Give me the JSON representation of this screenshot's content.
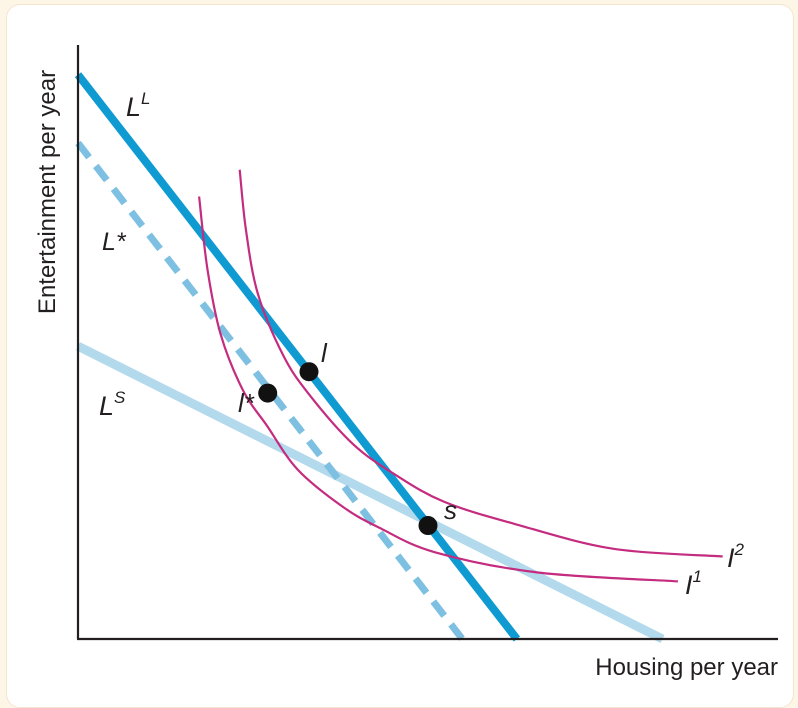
{
  "chart_data": {
    "type": "line",
    "title": "",
    "xlabel": "Housing per year",
    "ylabel": "Entertainment per year",
    "xlim": [
      0,
      100
    ],
    "ylim": [
      0,
      100
    ],
    "grid": false,
    "colors": {
      "LL": "#0f9bd2",
      "Lstar": "#7ec0e2",
      "LS": "#b3d9ec",
      "indifference": "#c42c7f",
      "point": "#111111",
      "axis": "#231f20"
    },
    "budget_lines": [
      {
        "id": "LL",
        "main": "L",
        "sup": "L",
        "style": "solid-thick",
        "x": [
          0,
          62.7
        ],
        "y": [
          95,
          0
        ]
      },
      {
        "id": "Lstar",
        "main": "L*",
        "sup": "",
        "style": "dashed",
        "x": [
          0,
          54.9
        ],
        "y": [
          83.5,
          0
        ]
      },
      {
        "id": "LS",
        "main": "L",
        "sup": "S",
        "style": "solid-pale",
        "x": [
          0,
          83.5
        ],
        "y": [
          49.3,
          0
        ]
      }
    ],
    "indifference_curves": [
      {
        "id": "I1",
        "main": "I",
        "sup": "1",
        "x": [
          17.3,
          18.5,
          20.4,
          23.6,
          27.0,
          31.4,
          37.9,
          43.1,
          51.0,
          65.7,
          85.7
        ],
        "y": [
          74.5,
          62.2,
          51.2,
          41.8,
          35.9,
          28.5,
          22.2,
          18.7,
          14.6,
          11.2,
          9.7
        ]
      },
      {
        "id": "I2",
        "main": "I",
        "sup": "2",
        "x": [
          23.1,
          24.0,
          25.7,
          29.3,
          33.0,
          39.3,
          45.4,
          52.3,
          62.3,
          76.4,
          92.1
        ],
        "y": [
          79.0,
          68.8,
          58.1,
          47.8,
          41.2,
          32.8,
          27.6,
          23.1,
          19.4,
          15.2,
          13.9
        ]
      }
    ],
    "points": [
      {
        "id": "l",
        "label": "l",
        "x": 33.0,
        "y": 45.0
      },
      {
        "id": "lstar",
        "label": "l*",
        "x": 27.1,
        "y": 41.4
      },
      {
        "id": "s",
        "label": "s",
        "x": 50.0,
        "y": 19.1
      }
    ]
  }
}
